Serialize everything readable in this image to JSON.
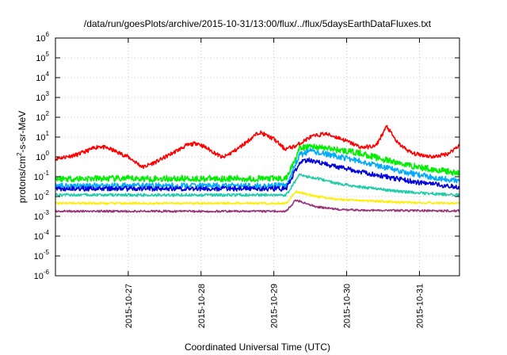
{
  "chart_data": {
    "type": "line",
    "title": "/data/run/goesPlots/archive/2015-10-31/13:00/flux/../flux/5daysEarthDataFluxes.txt",
    "xlabel": "Coordinated Universal Time (UTC)",
    "ylabel_prefix": "protons/cm",
    "ylabel_sup": "2",
    "ylabel_suffix": "-s-sr-MeV",
    "yscale": "log",
    "ylim": [
      1e-06,
      1000000.0
    ],
    "xlim": [
      26.0,
      31.55
    ],
    "grid": true,
    "y_ticks": [
      {
        "exp": -6,
        "mant": "10",
        "sup": "-6"
      },
      {
        "exp": -5,
        "mant": "10",
        "sup": "-5"
      },
      {
        "exp": -4,
        "mant": "10",
        "sup": "-4"
      },
      {
        "exp": -3,
        "mant": "10",
        "sup": "-3"
      },
      {
        "exp": -2,
        "mant": "10",
        "sup": "-2"
      },
      {
        "exp": -1,
        "mant": "10",
        "sup": "-1"
      },
      {
        "exp": 0,
        "mant": "10",
        "sup": "0"
      },
      {
        "exp": 1,
        "mant": "10",
        "sup": "1"
      },
      {
        "exp": 2,
        "mant": "10",
        "sup": "2"
      },
      {
        "exp": 3,
        "mant": "10",
        "sup": "3"
      },
      {
        "exp": 4,
        "mant": "10",
        "sup": "4"
      },
      {
        "exp": 5,
        "mant": "10",
        "sup": "5"
      },
      {
        "exp": 6,
        "mant": "10",
        "sup": "6"
      }
    ],
    "x_ticks": [
      {
        "day": 27,
        "label": "2015-10-27"
      },
      {
        "day": 28,
        "label": "2015-10-28"
      },
      {
        "day": 29,
        "label": "2015-10-29"
      },
      {
        "day": 30,
        "label": "2015-10-30"
      },
      {
        "day": 31,
        "label": "2015-10-31"
      }
    ],
    "series": [
      {
        "color": "#ff0000",
        "noise": 0.1,
        "x": [
          26.0,
          26.3,
          26.6,
          26.75,
          27.0,
          27.2,
          27.4,
          27.6,
          27.8,
          27.95,
          28.1,
          28.3,
          28.5,
          28.8,
          29.0,
          29.15,
          29.3,
          29.5,
          29.7,
          29.9,
          30.2,
          30.4,
          30.55,
          30.7,
          30.9,
          31.2,
          31.4,
          31.55
        ],
        "y": [
          0.8,
          1.3,
          3.5,
          2.5,
          1.0,
          0.3,
          0.6,
          1.5,
          3.8,
          5.0,
          2.5,
          0.9,
          2.5,
          18,
          8,
          2.5,
          3.5,
          10,
          15,
          9,
          3,
          3.5,
          35,
          5,
          1.5,
          1.0,
          1.5,
          4
        ]
      },
      {
        "color": "#00ee00",
        "noise": 0.16,
        "x": [
          26.0,
          29.17,
          29.35,
          29.5,
          29.8,
          30.2,
          30.6,
          31.0,
          31.55
        ],
        "y": [
          0.08,
          0.08,
          2.5,
          3.5,
          2.5,
          1.5,
          0.6,
          0.3,
          0.15
        ]
      },
      {
        "color": "#00aaff",
        "noise": 0.14,
        "x": [
          26.0,
          29.17,
          29.35,
          29.5,
          29.8,
          30.2,
          30.6,
          31.0,
          31.55
        ],
        "y": [
          0.035,
          0.035,
          1.2,
          2.0,
          1.2,
          0.6,
          0.25,
          0.12,
          0.06
        ]
      },
      {
        "color": "#0000dd",
        "noise": 0.12,
        "x": [
          26.0,
          29.17,
          29.35,
          29.5,
          29.8,
          30.2,
          30.6,
          31.0,
          31.55
        ],
        "y": [
          0.025,
          0.025,
          0.5,
          0.7,
          0.35,
          0.18,
          0.09,
          0.05,
          0.03
        ]
      },
      {
        "color": "#22ccaa",
        "noise": 0.07,
        "x": [
          26.0,
          29.17,
          29.35,
          29.6,
          29.9,
          30.2,
          30.6,
          31.0,
          31.55
        ],
        "y": [
          0.012,
          0.012,
          0.12,
          0.08,
          0.045,
          0.03,
          0.02,
          0.015,
          0.012
        ]
      },
      {
        "color": "#ffee00",
        "noise": 0.05,
        "x": [
          26.0,
          29.17,
          29.3,
          29.6,
          29.9,
          30.3,
          30.8,
          31.55
        ],
        "y": [
          0.0045,
          0.0045,
          0.018,
          0.01,
          0.007,
          0.006,
          0.005,
          0.0045
        ]
      },
      {
        "color": "#993377",
        "noise": 0.05,
        "x": [
          26.0,
          29.17,
          29.3,
          29.6,
          29.9,
          30.3,
          31.55
        ],
        "y": [
          0.0018,
          0.0018,
          0.0065,
          0.003,
          0.0022,
          0.002,
          0.0019
        ]
      }
    ]
  }
}
